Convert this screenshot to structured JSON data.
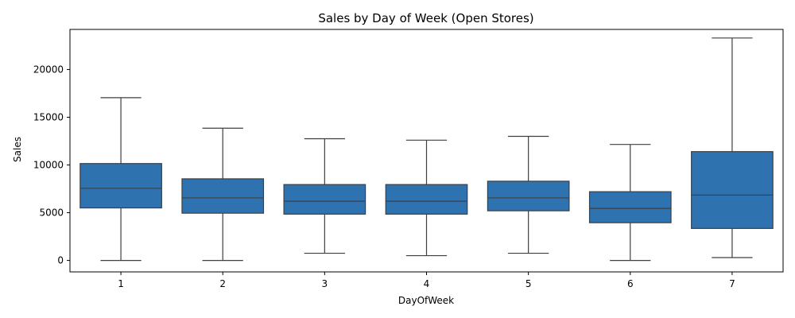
{
  "chart_data": {
    "type": "box",
    "title": "Sales by Day of Week (Open Stores)",
    "xlabel": "DayOfWeek",
    "ylabel": "Sales",
    "ylim": [
      -1200,
      24200
    ],
    "yticks": [
      0,
      5000,
      10000,
      15000,
      20000
    ],
    "categories": [
      "1",
      "2",
      "3",
      "4",
      "5",
      "6",
      "7"
    ],
    "boxes": [
      {
        "min": 0,
        "q1": 5500,
        "median": 7550,
        "q3": 10150,
        "max": 17050
      },
      {
        "min": 0,
        "q1": 4950,
        "median": 6550,
        "q3": 8550,
        "max": 13850
      },
      {
        "min": 750,
        "q1": 4850,
        "median": 6200,
        "q3": 7950,
        "max": 12750
      },
      {
        "min": 500,
        "q1": 4850,
        "median": 6200,
        "q3": 7950,
        "max": 12600
      },
      {
        "min": 750,
        "q1": 5200,
        "median": 6550,
        "q3": 8300,
        "max": 13000
      },
      {
        "min": 0,
        "q1": 3950,
        "median": 5450,
        "q3": 7200,
        "max": 12150
      },
      {
        "min": 300,
        "q1": 3350,
        "median": 6850,
        "q3": 11400,
        "max": 23300
      }
    ],
    "grid": false,
    "color": "#2f72b0"
  }
}
